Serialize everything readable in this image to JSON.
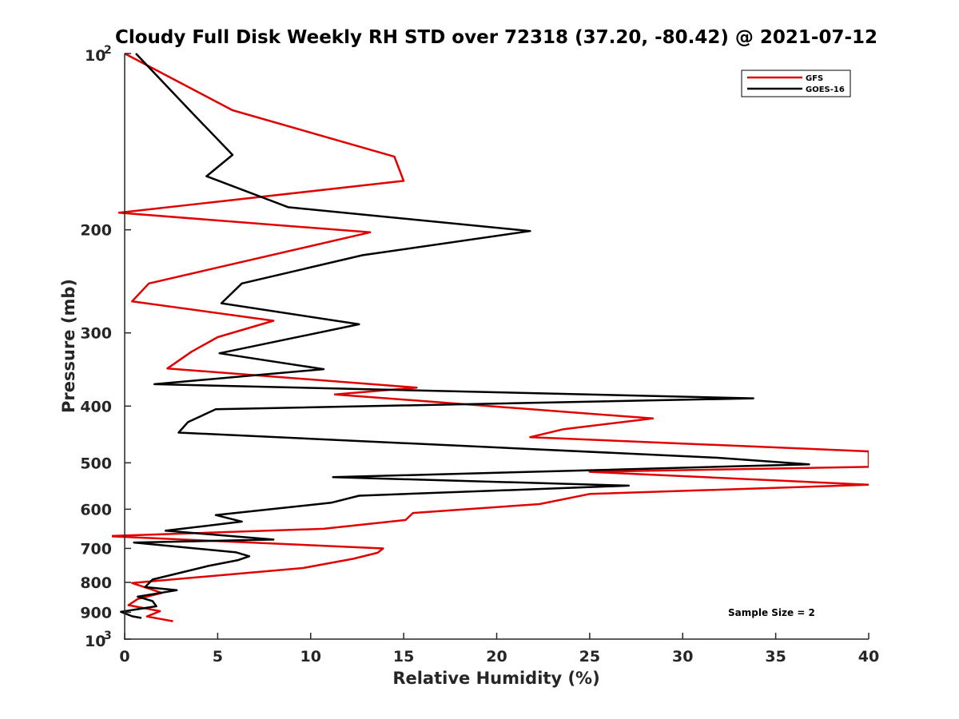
{
  "chart_data": {
    "type": "line",
    "title": "Cloudy Full Disk Weekly RH STD over 72318 (37.20, -80.42) @ 2021-07-12",
    "xlabel": "Relative Humidity (%)",
    "ylabel": "Pressure (mb)",
    "xlim": [
      0,
      40
    ],
    "ylim": [
      100,
      1000
    ],
    "y_scale": "log",
    "y_reversed": true,
    "x_ticks": [
      "0",
      "5",
      "10",
      "15",
      "20",
      "25",
      "30",
      "35",
      "40"
    ],
    "y_ticks": [
      {
        "value": 100,
        "base": "10",
        "exp": "2"
      },
      {
        "value": 200,
        "label": "200"
      },
      {
        "value": 300,
        "label": "300"
      },
      {
        "value": 400,
        "label": "400"
      },
      {
        "value": 500,
        "label": "500"
      },
      {
        "value": 600,
        "label": "600"
      },
      {
        "value": 700,
        "label": "700"
      },
      {
        "value": 800,
        "label": "800"
      },
      {
        "value": 900,
        "label": "900"
      },
      {
        "value": 1000,
        "base": "10",
        "exp": "3"
      }
    ],
    "legend": {
      "position": "top-right"
    },
    "annotation": "Sample Size = 2",
    "series": [
      {
        "name": "GFS",
        "color": "#e00000",
        "points": [
          [
            0,
            100
          ],
          [
            5.8,
            125
          ],
          [
            14.5,
            150
          ],
          [
            15,
            165
          ],
          [
            -0.3,
            187
          ],
          [
            13.2,
            202
          ],
          [
            1.3,
            247
          ],
          [
            0.4,
            265
          ],
          [
            8,
            286
          ],
          [
            5,
            305
          ],
          [
            3.6,
            323
          ],
          [
            2.3,
            345
          ],
          [
            15.7,
            372
          ],
          [
            11.3,
            382
          ],
          [
            28.4,
            420
          ],
          [
            23.6,
            438
          ],
          [
            21.8,
            452
          ],
          [
            40,
            478
          ],
          [
            40,
            508
          ],
          [
            25,
            518
          ],
          [
            40,
            545
          ],
          [
            25,
            565
          ],
          [
            22.3,
            588
          ],
          [
            15.5,
            609
          ],
          [
            15.1,
            626
          ],
          [
            10.7,
            648
          ],
          [
            -1,
            667
          ],
          [
            13.9,
            700
          ],
          [
            13.6,
            712
          ],
          [
            12.3,
            729
          ],
          [
            9.6,
            756
          ],
          [
            0.4,
            802
          ],
          [
            2,
            834
          ],
          [
            0.7,
            854
          ],
          [
            0.2,
            875
          ],
          [
            1.9,
            896
          ],
          [
            1.2,
            915
          ],
          [
            2.6,
            932
          ]
        ]
      },
      {
        "name": "GOES-16",
        "color": "#000000",
        "points": [
          [
            0.6,
            100
          ],
          [
            3.6,
            126
          ],
          [
            5.8,
            149
          ],
          [
            4.4,
            162
          ],
          [
            8.8,
            183
          ],
          [
            21.8,
            201
          ],
          [
            12.8,
            221
          ],
          [
            6.3,
            247
          ],
          [
            5.2,
            267
          ],
          [
            12.6,
            290
          ],
          [
            5.1,
            325
          ],
          [
            10.7,
            346
          ],
          [
            1.6,
            367
          ],
          [
            33.8,
            388
          ],
          [
            4.9,
            405
          ],
          [
            3.4,
            426
          ],
          [
            2.9,
            444
          ],
          [
            31.8,
            490
          ],
          [
            36.8,
            503
          ],
          [
            11.2,
            529
          ],
          [
            27.1,
            547
          ],
          [
            12.6,
            569
          ],
          [
            11.1,
            585
          ],
          [
            4.9,
            614
          ],
          [
            6.3,
            630
          ],
          [
            2.2,
            653
          ],
          [
            8,
            676
          ],
          [
            0.5,
            684
          ],
          [
            6,
            711
          ],
          [
            6.7,
            722
          ],
          [
            6.1,
            733
          ],
          [
            4.5,
            750
          ],
          [
            1.5,
            791
          ],
          [
            1.1,
            815
          ],
          [
            2.8,
            825
          ],
          [
            0.7,
            846
          ],
          [
            1.5,
            861
          ],
          [
            1.7,
            879
          ],
          [
            0.6,
            890
          ],
          [
            -0.2,
            898
          ],
          [
            0.4,
            914
          ],
          [
            0.9,
            920
          ]
        ]
      }
    ]
  }
}
